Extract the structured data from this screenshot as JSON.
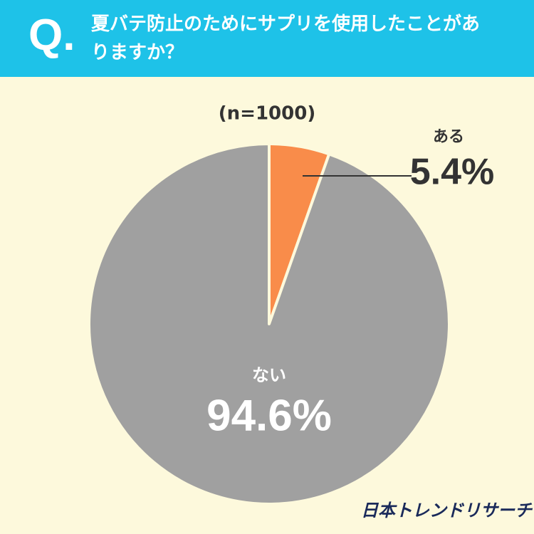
{
  "chart_data": {
    "type": "pie",
    "question_marker": "Q.",
    "title": "夏バテ防止のためにサプリを使用したことがありますか？",
    "subtitle": "(n=1000)",
    "categories": [
      "ある",
      "ない"
    ],
    "values": [
      5.4,
      94.6
    ],
    "value_labels": [
      "5.4%",
      "94.6%"
    ],
    "colors": [
      "#f98c4a",
      "#a0a0a0"
    ],
    "source": "日本トレンドリサーチ"
  }
}
